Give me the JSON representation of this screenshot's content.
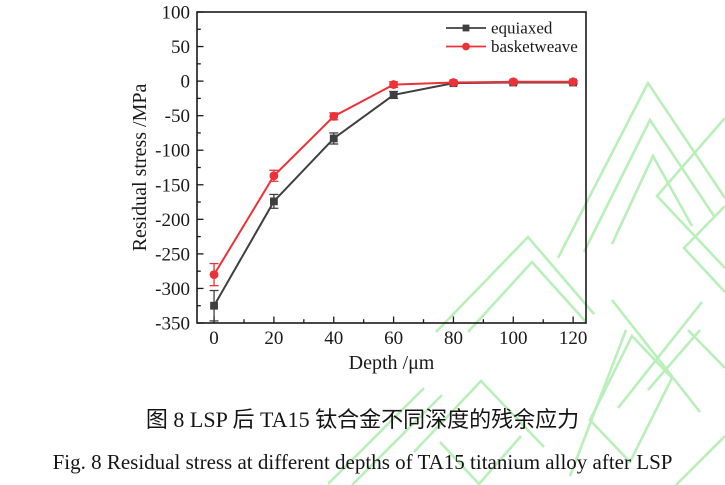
{
  "figure": {
    "caption_zh": "图 8 LSP 后 TA15 钛合金不同深度的残余应力",
    "caption_en": "Fig. 8 Residual stress at different depths of TA15 titanium alloy after LSP"
  },
  "colors": {
    "axis": "#1a1a1a",
    "equiaxed": "#3f3f3f",
    "basketweave": "#ed3237",
    "watermark": "#b9efb9"
  },
  "chart_data": {
    "type": "line",
    "title": "",
    "xlabel": "Depth /μm",
    "ylabel": "Residual stress /MPa",
    "x": [
      0,
      20,
      40,
      60,
      80,
      100,
      120
    ],
    "xlim": [
      -5.7,
      124.3
    ],
    "ylim": [
      -350,
      100
    ],
    "x_major_ticks": [
      0,
      20,
      40,
      60,
      80,
      100,
      120
    ],
    "x_minor_ticks": [
      10,
      30,
      50,
      70,
      90,
      110
    ],
    "y_major_ticks": [
      100,
      50,
      0,
      -50,
      -100,
      -150,
      -200,
      -250,
      -300,
      -350
    ],
    "y_minor_ticks": [
      75,
      25,
      -25,
      -75,
      -125,
      -175,
      -225,
      -275,
      -325
    ],
    "grid": false,
    "legend_position": "top-right-inside",
    "series": [
      {
        "name": "equiaxed",
        "marker": "square",
        "color": "#3f3f3f",
        "values": [
          -325,
          -174,
          -83,
          -20,
          -3,
          -2,
          -2
        ],
        "errors": [
          22,
          10,
          8,
          5,
          2,
          2,
          2
        ]
      },
      {
        "name": "basketweave",
        "marker": "circle",
        "color": "#ed3237",
        "values": [
          -280,
          -137,
          -51,
          -5,
          -2,
          -1,
          -1
        ],
        "errors": [
          16,
          8,
          5,
          4,
          2,
          2,
          2
        ]
      }
    ]
  }
}
